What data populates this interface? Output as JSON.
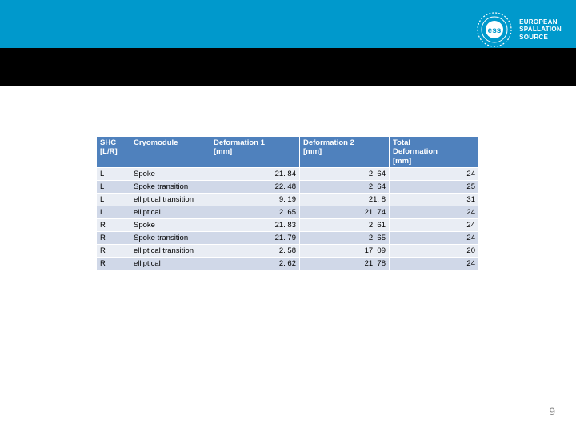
{
  "header": {
    "brand_lines": [
      "EUROPEAN",
      "SPALLATION",
      "SOURCE"
    ],
    "logo_label": "ess"
  },
  "colors": {
    "top_band": "#0099cc",
    "black_band": "#000000",
    "table_header_bg": "#4f81bd",
    "row_odd_bg": "#e9edf4",
    "row_even_bg": "#d0d8e8",
    "text": "#000000",
    "page_num": "#888888"
  },
  "table": {
    "type": "table",
    "columns": [
      {
        "label_lines": [
          "SHC",
          "[L/R]"
        ],
        "align": "left"
      },
      {
        "label_lines": [
          "Cryomodule"
        ],
        "align": "left"
      },
      {
        "label_lines": [
          "Deformation 1",
          "[mm]"
        ],
        "align": "right"
      },
      {
        "label_lines": [
          "Deformation 2",
          "[mm]"
        ],
        "align": "right"
      },
      {
        "label_lines": [
          "Total",
          "Deformation",
          "[mm]"
        ],
        "align": "right"
      }
    ],
    "rows": [
      [
        "L",
        "Spoke",
        "21. 84",
        "2. 64",
        "24"
      ],
      [
        "L",
        "Spoke transition",
        "22. 48",
        "2. 64",
        "25"
      ],
      [
        "L",
        "elliptical transition",
        "9. 19",
        "21. 8",
        "31"
      ],
      [
        "L",
        "elliptical",
        "2. 65",
        "21. 74",
        "24"
      ],
      [
        "R",
        "Spoke",
        "21. 83",
        "2. 61",
        "24"
      ],
      [
        "R",
        "Spoke transition",
        "21. 79",
        "2. 65",
        "24"
      ],
      [
        "R",
        "elliptical transition",
        "2. 58",
        "17. 09",
        "20"
      ],
      [
        "R",
        "elliptical",
        "2. 62",
        "21. 78",
        "24"
      ]
    ]
  },
  "page_number": "9"
}
